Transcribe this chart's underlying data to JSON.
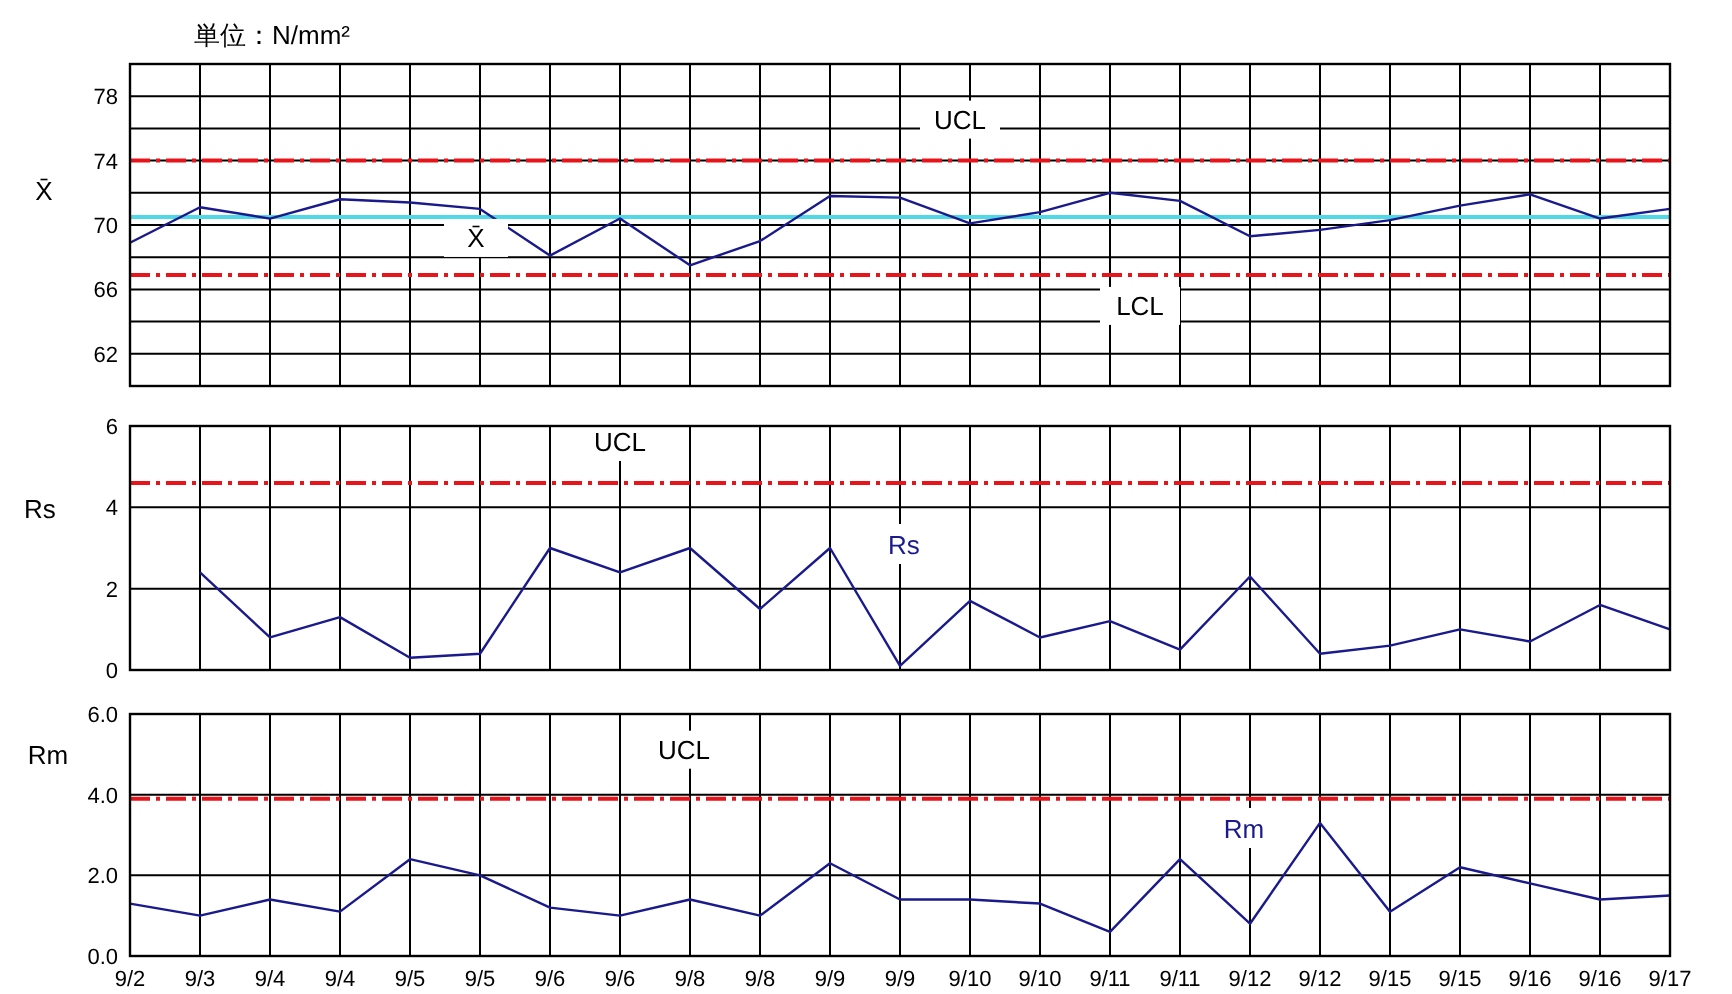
{
  "chart_data": [
    {
      "type": "line",
      "title": "単位：N/mm²",
      "ylabel": "X̄",
      "categories": [
        null,
        null,
        null,
        null,
        null,
        null,
        null,
        null,
        null,
        null,
        null,
        null,
        null,
        null,
        null,
        null,
        null,
        null,
        null,
        null,
        null,
        null,
        null
      ],
      "series": [
        {
          "color": "#1a1a8c",
          "values": [
            68.9,
            71.1,
            70.4,
            71.6,
            71.4,
            71.0,
            68.1,
            70.4,
            67.5,
            69.0,
            71.8,
            71.7,
            70.1,
            70.8,
            72.0,
            71.5,
            69.3,
            69.7,
            70.3,
            71.2,
            71.9,
            70.4,
            71.0
          ]
        }
      ],
      "ylim": [
        60,
        80
      ],
      "yticks": [
        {
          "value": 60,
          "label": null
        },
        62,
        {
          "value": 64,
          "label": null
        },
        66,
        {
          "value": 68,
          "label": null
        },
        70,
        {
          "value": 72,
          "label": null
        },
        74,
        {
          "value": 76,
          "label": null
        },
        78,
        {
          "value": 80,
          "label": null
        }
      ],
      "ref_lines": [
        {
          "axis": "y",
          "value": 74,
          "label": "UCL",
          "color": "#e8141c",
          "line_style": "dashed"
        },
        {
          "axis": "y",
          "value": 66.9,
          "label": "LCL",
          "color": "#e8141c",
          "line_style": "dashed"
        },
        {
          "axis": "y",
          "value": 70.5,
          "label": "X̄",
          "color": "#4fd8e8",
          "line_style": "solid"
        }
      ],
      "grid": true,
      "tick_labels": "y"
    },
    {
      "type": "line",
      "ylabel": "Rs",
      "categories": [
        null,
        null,
        null,
        null,
        null,
        null,
        null,
        null,
        null,
        null,
        null,
        null,
        null,
        null,
        null,
        null,
        null,
        null,
        null,
        null,
        null,
        null,
        null
      ],
      "series": [
        {
          "name": "Rs",
          "color": "#1a1a8c",
          "values": [
            null,
            2.4,
            0.8,
            1.3,
            0.3,
            0.4,
            3.0,
            2.4,
            3.0,
            1.5,
            3.0,
            0.1,
            1.7,
            0.8,
            1.2,
            0.5,
            2.3,
            0.4,
            0.6,
            1.0,
            0.7,
            1.6,
            1.0
          ]
        }
      ],
      "ylim": [
        0,
        6
      ],
      "yticks": [
        0,
        2,
        4,
        6
      ],
      "ref_lines": [
        {
          "axis": "y",
          "value": 4.6,
          "label": "UCL",
          "color": "#e8141c",
          "line_style": "dashed"
        }
      ],
      "grid": true,
      "tick_labels": "y"
    },
    {
      "type": "line",
      "ylabel": "Rm",
      "categories": [
        "9/2",
        "9/3",
        "9/4",
        "9/4",
        "9/5",
        "9/5",
        "9/6",
        "9/6",
        "9/8",
        "9/8",
        "9/9",
        "9/9",
        "9/10",
        "9/10",
        "9/11",
        "9/11",
        "9/12",
        "9/12",
        "9/15",
        "9/15",
        "9/16",
        "9/16",
        "9/17"
      ],
      "series": [
        {
          "name": "Rm",
          "color": "#1a1a8c",
          "values": [
            1.3,
            1.0,
            1.4,
            1.1,
            2.4,
            2.0,
            1.2,
            1.0,
            1.4,
            1.0,
            2.3,
            1.4,
            1.4,
            1.3,
            0.6,
            2.4,
            0.8,
            3.3,
            1.1,
            2.2,
            1.8,
            1.4,
            1.5
          ]
        }
      ],
      "ylim": [
        0,
        6
      ],
      "yticks": [
        {
          "value": 0,
          "label": "0.0"
        },
        {
          "value": 2,
          "label": "2.0"
        },
        {
          "value": 4,
          "label": "4.0"
        },
        {
          "value": 6,
          "label": "6.0"
        }
      ],
      "ref_lines": [
        {
          "axis": "y",
          "value": 3.9,
          "label": "UCL",
          "color": "#e8141c",
          "line_style": "dashed"
        }
      ],
      "grid": true
    }
  ]
}
